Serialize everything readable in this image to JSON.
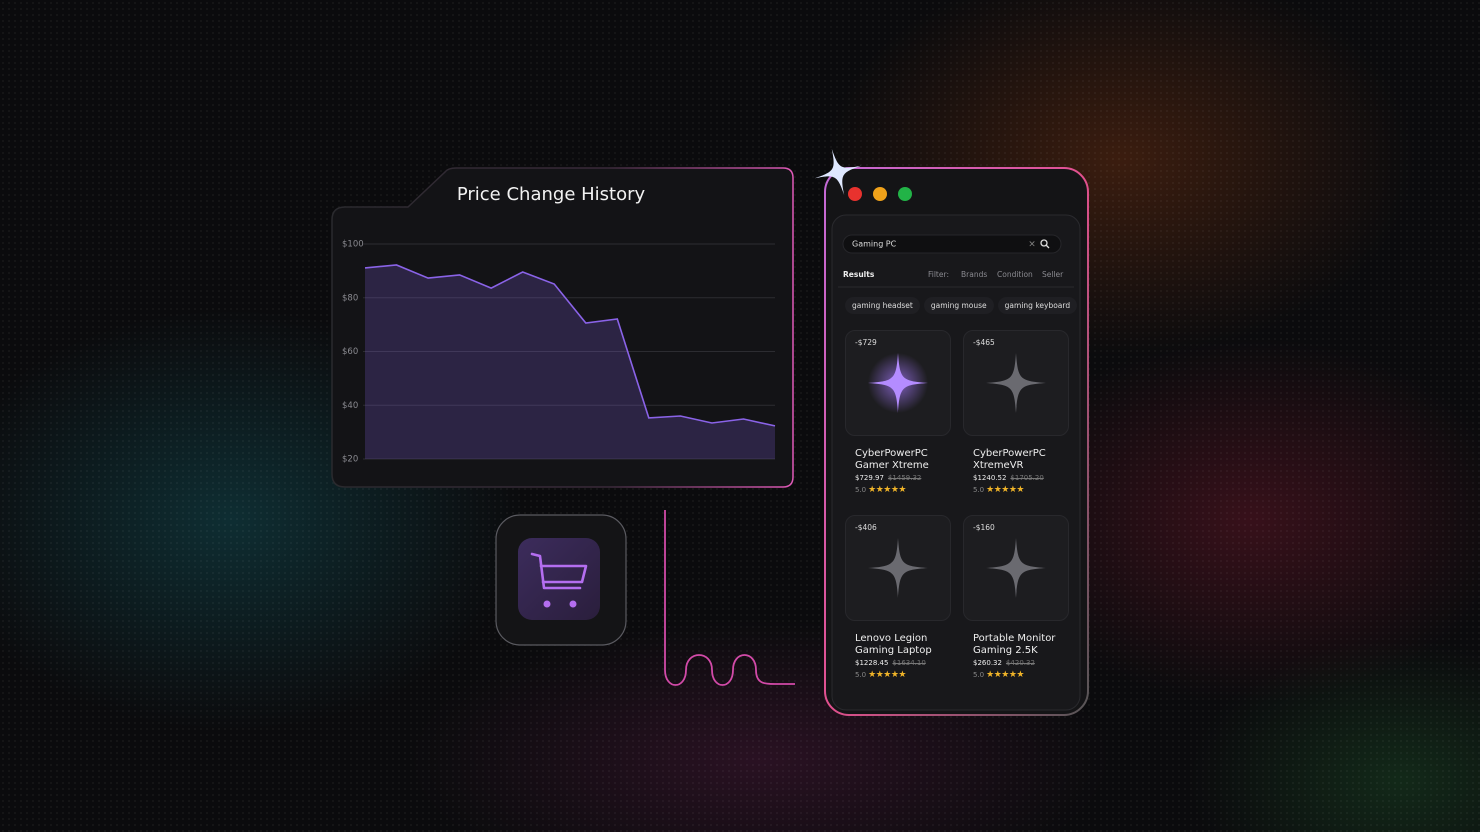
{
  "chart_data": {
    "type": "area",
    "title": "Price Change History",
    "values": [
      91.1,
      92.2,
      87.3,
      88.5,
      83.6,
      89.6,
      85.1,
      70.6,
      72.1,
      35.3,
      36.0,
      33.4,
      34.9,
      32.3
    ],
    "color": "#8a63e8",
    "ylim": [
      20,
      100
    ],
    "yticks": [
      {
        "value": 20,
        "label": "$20"
      },
      {
        "value": 40,
        "label": "$40"
      },
      {
        "value": 60,
        "label": "$60"
      },
      {
        "value": 80,
        "label": "$80"
      },
      {
        "value": 100,
        "label": "$100"
      }
    ],
    "grid": true
  },
  "window": {
    "search": "Gaming PC",
    "tabs": [
      "Results",
      "Filter:",
      "Brands",
      "Condition",
      "Seller"
    ],
    "chips": [
      "gaming headset",
      "gaming mouse",
      "gaming keyboard"
    ],
    "products": [
      {
        "discount": "-$729",
        "name": "CyberPowerPC Gamer Xtreme",
        "price": "$729.97",
        "old_price": "$1459.32",
        "rating": "5.0"
      },
      {
        "discount": "-$465",
        "name": "CyberPowerPC XtremeVR",
        "price": "$1240.52",
        "old_price": "$1705.20",
        "rating": "5.0"
      },
      {
        "discount": "-$406",
        "name": "Lenovo Legion Gaming Laptop",
        "price": "$1228.45",
        "old_price": "$1634.10",
        "rating": "5.0"
      },
      {
        "discount": "-$160",
        "name": "Portable Monitor Gaming 2.5K",
        "price": "$260.32",
        "old_price": "$420.32",
        "rating": "5.0"
      }
    ]
  }
}
